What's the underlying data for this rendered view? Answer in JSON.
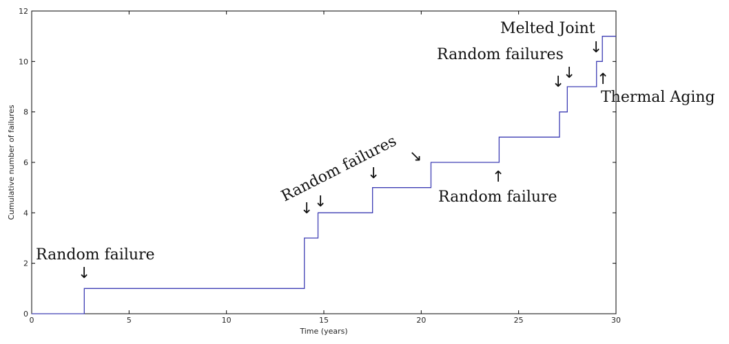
{
  "chart_data": {
    "type": "line",
    "step": true,
    "title": "",
    "xlabel": "Time (years)",
    "ylabel": "Cumulative number of failures",
    "xlim": [
      0,
      30
    ],
    "ylim": [
      0,
      12
    ],
    "xticks": [
      0,
      5,
      10,
      15,
      20,
      25,
      30
    ],
    "yticks": [
      0,
      2,
      4,
      6,
      8,
      10,
      12
    ],
    "grid": false,
    "series_color": "#3c3cb4",
    "steps": [
      {
        "x": 0,
        "y": 0
      },
      {
        "x": 2.7,
        "y": 1
      },
      {
        "x": 14.0,
        "y": 3
      },
      {
        "x": 14.7,
        "y": 4
      },
      {
        "x": 17.5,
        "y": 5
      },
      {
        "x": 20.5,
        "y": 6
      },
      {
        "x": 24.0,
        "y": 7
      },
      {
        "x": 27.1,
        "y": 8
      },
      {
        "x": 27.5,
        "y": 9
      },
      {
        "x": 29.0,
        "y": 10
      },
      {
        "x": 29.3,
        "y": 11
      },
      {
        "x": 30.0,
        "y": 11
      }
    ],
    "annotations": [
      {
        "text": "Random failure"
      },
      {
        "text": "Random failures"
      },
      {
        "text": "Random failure"
      },
      {
        "text": "Random failures"
      },
      {
        "text": "Melted Joint"
      },
      {
        "text": "Thermal Aging"
      }
    ],
    "arrows": [
      {
        "glyph": "↓",
        "at_x": 2.7
      },
      {
        "glyph": "↓",
        "at_x": 14.0
      },
      {
        "glyph": "↓",
        "at_x": 14.7
      },
      {
        "glyph": "↓",
        "at_x": 17.5
      },
      {
        "glyph": "↘",
        "at_x": 20.0
      },
      {
        "glyph": "↑",
        "at_x": 24.0
      },
      {
        "glyph": "↓",
        "at_x": 27.0
      },
      {
        "glyph": "↓",
        "at_x": 27.6
      },
      {
        "glyph": "↓",
        "at_x": 28.9
      },
      {
        "glyph": "↑",
        "at_x": 29.3
      }
    ]
  }
}
